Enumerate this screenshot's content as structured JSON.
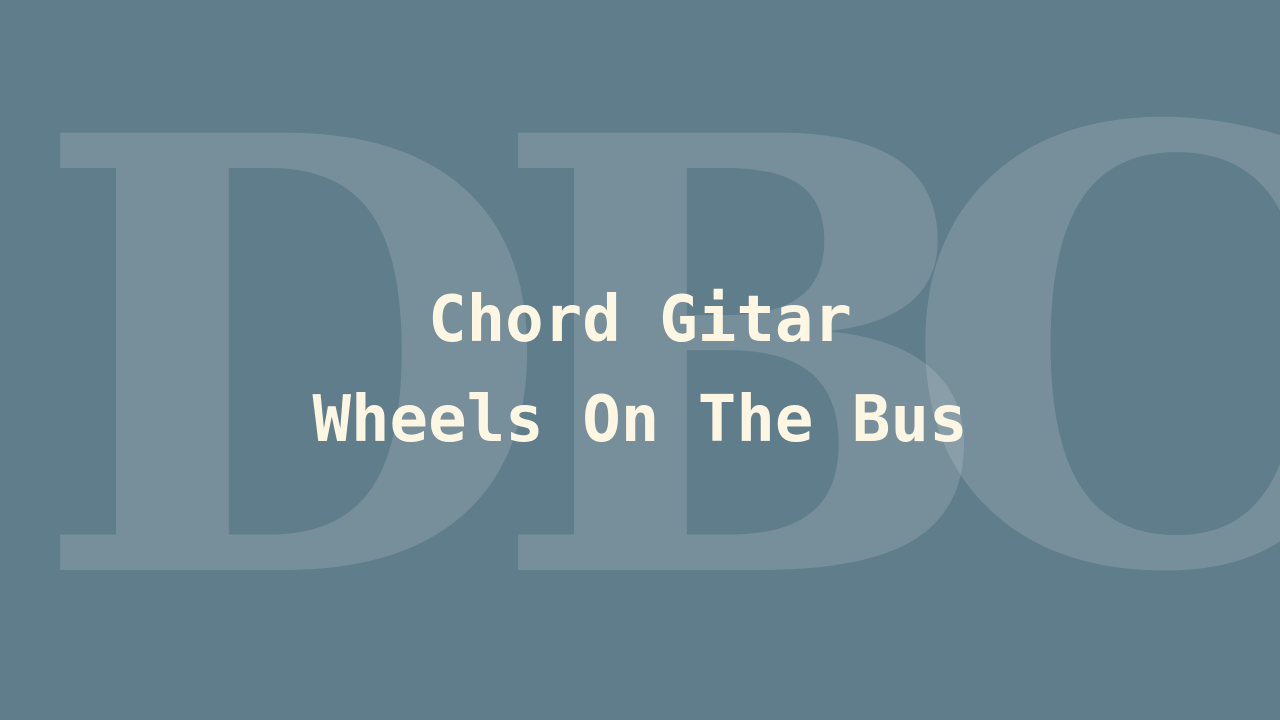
{
  "background": {
    "color": "#607d8b",
    "watermark_text": "DBC"
  },
  "title": {
    "line1": "Chord Gitar",
    "line2": "Wheels On The Bus",
    "color": "#fdf6e3"
  }
}
